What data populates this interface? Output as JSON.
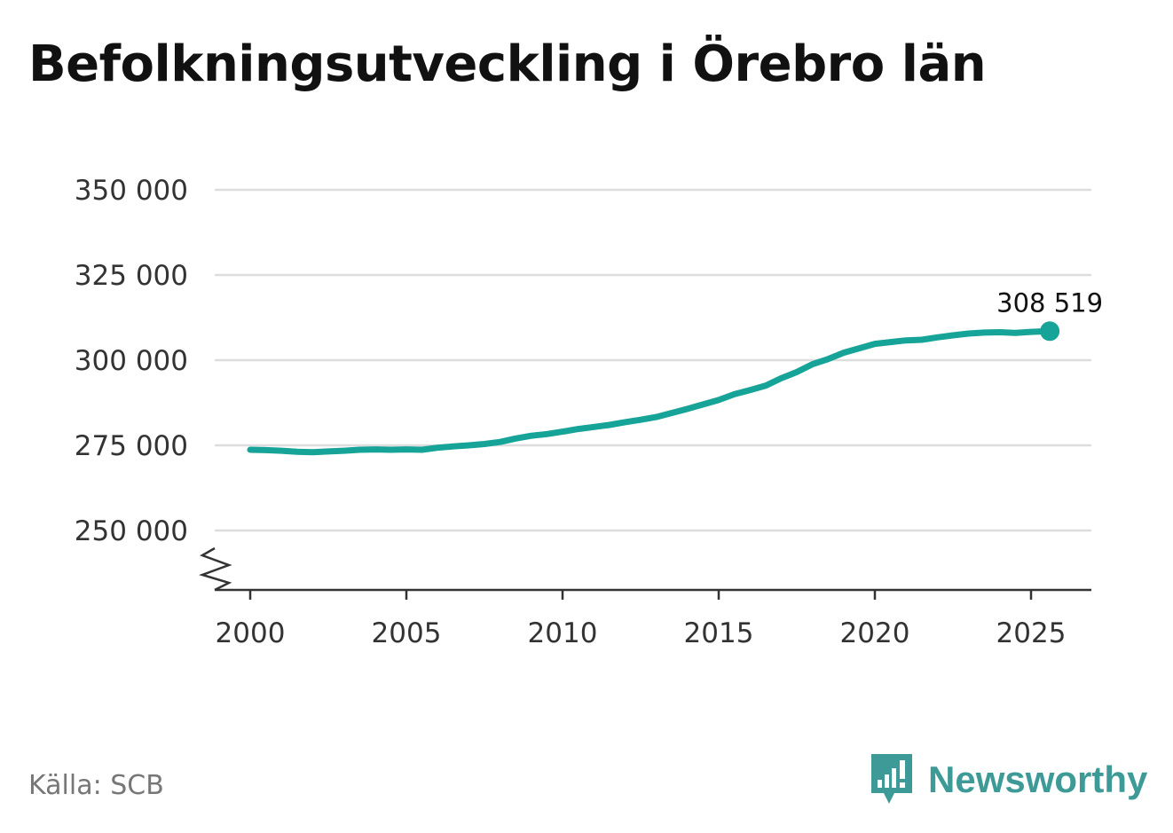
{
  "title": "Befolkningsutveckling i Örebro län",
  "source": "Källa: SCB",
  "brand": {
    "name": "Newsworthy",
    "icon": "newsworthy-logo-icon",
    "color": "#3d9a97"
  },
  "colors": {
    "line": "#16a398",
    "grid": "#dddddd",
    "axis": "#333333"
  },
  "chart_data": {
    "type": "line",
    "title": "Befolkningsutveckling i Örebro län",
    "xlabel": "",
    "ylabel": "",
    "xlim": [
      1999.8,
      2027.8
    ],
    "ylim": [
      233000,
      350000
    ],
    "axis_break": true,
    "grid": true,
    "x_ticks": [
      2000,
      2005,
      2010,
      2015,
      2020,
      2025
    ],
    "x_tick_labels": [
      "2000",
      "2005",
      "2010",
      "2015",
      "2020",
      "2025"
    ],
    "y_ticks": [
      250000,
      275000,
      300000,
      325000,
      350000
    ],
    "y_tick_labels": [
      "250 000",
      "275 000",
      "300 000",
      "325 000",
      "350 000"
    ],
    "end_label": "308 519",
    "series": [
      {
        "x": [
          2000.0,
          2000.5,
          2001.0,
          2001.5,
          2002.0,
          2002.5,
          2003.0,
          2003.5,
          2004.0,
          2004.5,
          2005.0,
          2005.5,
          2006.0,
          2006.5,
          2007.0,
          2007.5,
          2008.0,
          2008.5,
          2009.0,
          2009.5,
          2010.0,
          2010.5,
          2011.0,
          2011.5,
          2012.0,
          2012.5,
          2013.0,
          2013.5,
          2014.0,
          2014.5,
          2015.0,
          2015.5,
          2016.0,
          2016.5,
          2017.0,
          2017.5,
          2018.0,
          2018.5,
          2019.0,
          2019.5,
          2020.0,
          2020.5,
          2021.0,
          2021.5,
          2022.0,
          2022.5,
          2023.0,
          2023.5,
          2024.0,
          2024.5,
          2025.0,
          2025.6
        ],
        "values": [
          273700,
          273600,
          273400,
          273100,
          273000,
          273200,
          273400,
          273700,
          273800,
          273700,
          273800,
          273700,
          274300,
          274700,
          275000,
          275400,
          276000,
          277000,
          277800,
          278300,
          279000,
          279800,
          280400,
          281000,
          281800,
          282500,
          283300,
          284500,
          285700,
          287000,
          288300,
          290000,
          291200,
          292500,
          294700,
          296500,
          298800,
          300300,
          302200,
          303500,
          304800,
          305300,
          305800,
          306000,
          306700,
          307300,
          307800,
          308100,
          308200,
          308000,
          308300,
          308519
        ]
      }
    ]
  }
}
